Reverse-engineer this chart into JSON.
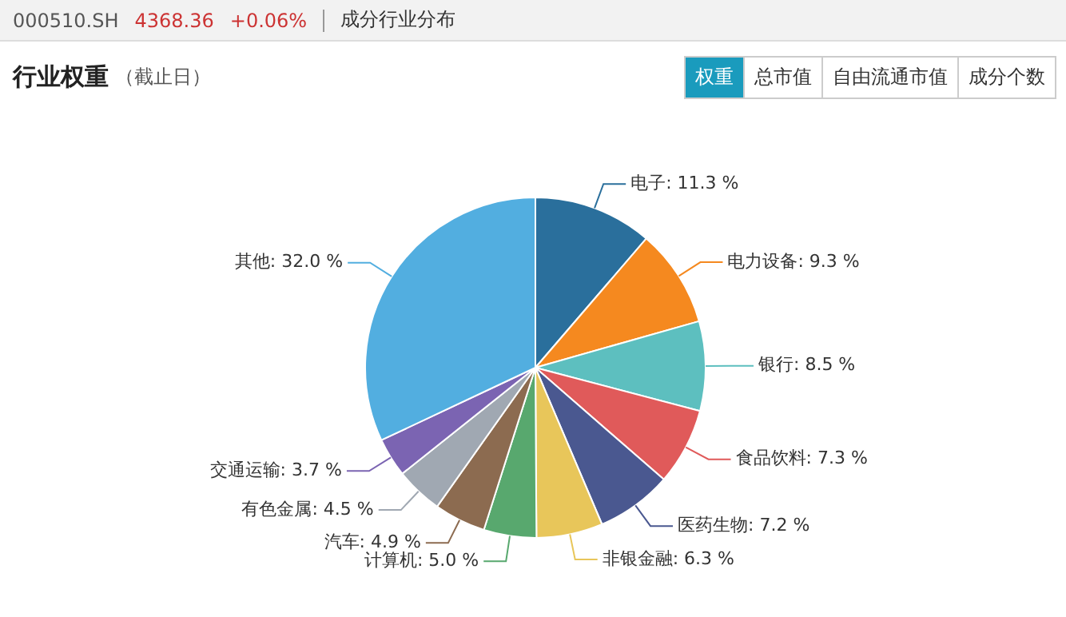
{
  "chart_data": {
    "type": "pie",
    "title": "行业权重",
    "subtitle": "（截止日）",
    "annotations": [
      "000510.SH",
      "4368.36",
      "+0.06%",
      "成分行业分布",
      "权重",
      "总市值",
      "自由流通市值",
      "成分个数"
    ],
    "categories": [
      "电子",
      "电力设备",
      "银行",
      "食品饮料",
      "医药生物",
      "非银金融",
      "计算机",
      "汽车",
      "有色金属",
      "交通运输",
      "其他"
    ],
    "values": [
      11.3,
      9.3,
      8.5,
      7.3,
      7.2,
      6.3,
      5.0,
      4.9,
      4.5,
      3.7,
      32.0
    ],
    "value_labels": [
      "11.3 %",
      "9.3 %",
      "8.5 %",
      "7.3 %",
      "7.2 %",
      "6.3 %",
      "5.0 %",
      "4.9 %",
      "4.5 %",
      "3.7 %",
      "32.0 %"
    ],
    "colors": [
      "#2a6f9c",
      "#f5891f",
      "#5dbfbf",
      "#e05a5a",
      "#4a5890",
      "#e8c65a",
      "#58a86e",
      "#8c6b50",
      "#a0a8b2",
      "#7b64b2",
      "#52aee0"
    ],
    "legend": false
  }
}
